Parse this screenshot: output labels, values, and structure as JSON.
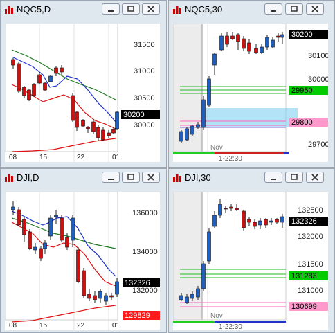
{
  "windows": [
    {
      "title": "NQC5,D",
      "y_labels": [
        "31500",
        "31000",
        "30500",
        "30000"
      ],
      "x_labels": [
        "08",
        "15",
        "22",
        "01"
      ],
      "price_tags": [
        {
          "text": "30200",
          "bg": "#000000",
          "fg": "#ffffff"
        }
      ]
    },
    {
      "title": "NQC5,30",
      "y_labels": [
        "30100",
        "30000",
        "29700"
      ],
      "x_labels": [
        "Nov",
        "1-22:30"
      ],
      "price_tags": [
        {
          "text": "30200",
          "bg": "#000000",
          "fg": "#ffffff"
        },
        {
          "text": "29950",
          "bg": "#00cc00",
          "fg": "#000000"
        },
        {
          "text": "29800",
          "bg": "#ff99cc",
          "fg": "#000000"
        }
      ]
    },
    {
      "title": "DJI,D",
      "y_labels": [
        "136000",
        "134000",
        "132000"
      ],
      "x_labels": [
        "08",
        "15",
        "22",
        "01"
      ],
      "price_tags": [
        {
          "text": "132326",
          "bg": "#000000",
          "fg": "#ffffff"
        },
        {
          "text": "129829",
          "bg": "#ff1a1a",
          "fg": "#ffffff"
        }
      ]
    },
    {
      "title": "DJI,30",
      "y_labels": [
        "132500",
        "132000",
        "131500",
        "131000"
      ],
      "x_labels": [
        "Nov",
        "1-22:30"
      ],
      "price_tags": [
        {
          "text": "132326",
          "bg": "#000000",
          "fg": "#ffffff"
        },
        {
          "text": "131283",
          "bg": "#00cc00",
          "fg": "#000000"
        },
        {
          "text": "130699",
          "bg": "#ff99cc",
          "fg": "#000000"
        }
      ]
    }
  ],
  "colors": {
    "bull": "#1f5fc0",
    "bear": "#cc1111",
    "ma_blue": "#1a2ecc",
    "ma_green": "#1e7a1e",
    "ma_red": "#dd1111"
  }
}
